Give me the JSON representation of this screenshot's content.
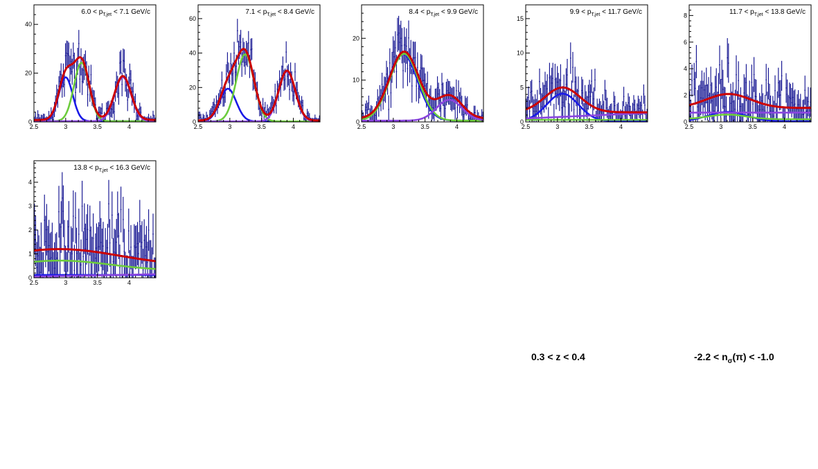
{
  "labels": {
    "z_range": "0.3 < z < 0.4",
    "nsigma_prefix": "-2.2 < n",
    "nsigma_sub": "σ",
    "nsigma_suffix": "(π) < -1.0"
  },
  "colors": {
    "data": "#0a0a8c",
    "total": "#cc0000",
    "blue": "#1a1ae6",
    "green": "#6ccc3c",
    "violet": "#8a45e0"
  },
  "chart_data": [
    {
      "type": "line",
      "title_parts": [
        "6.0 < p",
        "T,jet",
        " < 7.1 GeV/c"
      ],
      "xlim": [
        2.5,
        4.42
      ],
      "ylim": [
        0,
        48
      ],
      "xticks": [
        2.5,
        3,
        3.5,
        4
      ],
      "yticks": [
        0,
        20,
        40
      ],
      "grid": false,
      "components": [
        {
          "color": "blue",
          "baseline": 0.3,
          "gaussians": [
            [
              18,
              3.0,
              0.11
            ]
          ]
        },
        {
          "color": "green",
          "baseline": 0.3,
          "gaussians": [
            [
              24,
              3.25,
              0.12
            ]
          ]
        },
        {
          "color": "violet",
          "baseline": 0.3,
          "gaussians": [
            [
              18,
              3.9,
              0.13
            ]
          ]
        },
        {
          "color": "total",
          "baseline": 0.8,
          "gaussians": [
            [
              18,
              3.0,
              0.11
            ],
            [
              24,
              3.25,
              0.12
            ],
            [
              18,
              3.9,
              0.13
            ]
          ]
        }
      ]
    },
    {
      "type": "line",
      "title_parts": [
        "7.1 < p",
        "T,jet",
        " < 8.4 GeV/c"
      ],
      "xlim": [
        2.5,
        4.42
      ],
      "ylim": [
        0,
        68
      ],
      "xticks": [
        2.5,
        3,
        3.5,
        4
      ],
      "yticks": [
        0,
        20,
        40,
        60
      ],
      "grid": false,
      "components": [
        {
          "color": "blue",
          "baseline": 0.3,
          "gaussians": [
            [
              19,
              2.97,
              0.13
            ]
          ]
        },
        {
          "color": "green",
          "baseline": 0.3,
          "gaussians": [
            [
              39,
              3.24,
              0.14
            ]
          ]
        },
        {
          "color": "violet",
          "baseline": 0.3,
          "gaussians": [
            [
              29,
              3.9,
              0.13
            ]
          ]
        },
        {
          "color": "total",
          "baseline": 0.8,
          "gaussians": [
            [
              19,
              2.97,
              0.13
            ],
            [
              39,
              3.24,
              0.14
            ],
            [
              29,
              3.9,
              0.13
            ]
          ]
        }
      ]
    },
    {
      "type": "line",
      "title_parts": [
        "8.4 < p",
        "T,jet",
        " < 9.9 GeV/c"
      ],
      "xlim": [
        2.5,
        4.42
      ],
      "ylim": [
        0,
        28
      ],
      "xticks": [
        2.5,
        3,
        3.5,
        4
      ],
      "yticks": [
        0,
        10,
        20
      ],
      "grid": false,
      "components": [
        {
          "color": "blue",
          "baseline": 0.3,
          "gaussians": [
            [
              16,
              3.15,
              0.23
            ]
          ]
        },
        {
          "color": "green",
          "baseline": 0.3,
          "gaussians": [
            [
              16,
              3.17,
              0.23
            ]
          ]
        },
        {
          "color": "violet",
          "baseline": 0.3,
          "gaussians": [
            [
              5,
              3.88,
              0.2
            ]
          ]
        },
        {
          "color": "total",
          "baseline": 0.8,
          "gaussians": [
            [
              16,
              3.17,
              0.23
            ],
            [
              5.5,
              3.88,
              0.2
            ]
          ]
        }
      ]
    },
    {
      "type": "line",
      "title_parts": [
        "9.9 < p",
        "T,jet",
        " < 11.7 GeV/c"
      ],
      "xlim": [
        2.5,
        4.42
      ],
      "ylim": [
        0,
        17
      ],
      "xticks": [
        2.5,
        3,
        3.5,
        4
      ],
      "yticks": [
        0,
        5,
        10,
        15
      ],
      "grid": false,
      "components": [
        {
          "color": "blue",
          "baseline": 0.1,
          "gaussians": [
            [
              4,
              3.08,
              0.25
            ]
          ]
        },
        {
          "color": "green",
          "baseline": 0.3,
          "gaussians": []
        },
        {
          "color": "violet",
          "baseline": 0.5,
          "slope": 0.8,
          "gaussians": []
        },
        {
          "color": "total",
          "baseline": 1.4,
          "gaussians": [
            [
              3.6,
              3.08,
              0.28
            ]
          ]
        }
      ]
    },
    {
      "type": "line",
      "title_parts": [
        "11.7 < p",
        "T,jet",
        " < 13.8 GeV/c"
      ],
      "xlim": [
        2.5,
        4.42
      ],
      "ylim": [
        0,
        8.8
      ],
      "xticks": [
        2.5,
        3,
        3.5,
        4
      ],
      "yticks": [
        0,
        2,
        4,
        6,
        8
      ],
      "grid": false,
      "components": [
        {
          "color": "blue",
          "baseline": 0.05,
          "gaussians": [
            [
              0.7,
              3.1,
              0.3
            ]
          ]
        },
        {
          "color": "green",
          "baseline": 0.2,
          "gaussians": [
            [
              0.35,
              3.1,
              0.3
            ]
          ]
        },
        {
          "color": "violet",
          "baseline": 0.7,
          "gaussians": []
        },
        {
          "color": "total",
          "baseline": 1.05,
          "gaussians": [
            [
              1.05,
              3.12,
              0.35
            ]
          ]
        }
      ]
    },
    {
      "type": "line",
      "title_parts": [
        "13.8 < p",
        "T,jet",
        " < 16.3 GeV/c"
      ],
      "xlim": [
        2.5,
        4.42
      ],
      "ylim": [
        0,
        4.9
      ],
      "xticks": [
        2.5,
        3,
        3.5,
        4
      ],
      "yticks": [
        0,
        1,
        2,
        3,
        4
      ],
      "grid": false,
      "components": [
        {
          "color": "blue",
          "baseline": 0.12,
          "gaussians": []
        },
        {
          "color": "green",
          "baseline": 0.3,
          "gaussians": [
            [
              0.42,
              2.9,
              0.8
            ]
          ]
        },
        {
          "color": "violet",
          "baseline": 0.05,
          "slope": 0.1,
          "gaussians": []
        },
        {
          "color": "total",
          "baseline": 0.5,
          "gaussians": [
            [
              0.7,
              2.9,
              0.95
            ]
          ]
        }
      ]
    }
  ]
}
